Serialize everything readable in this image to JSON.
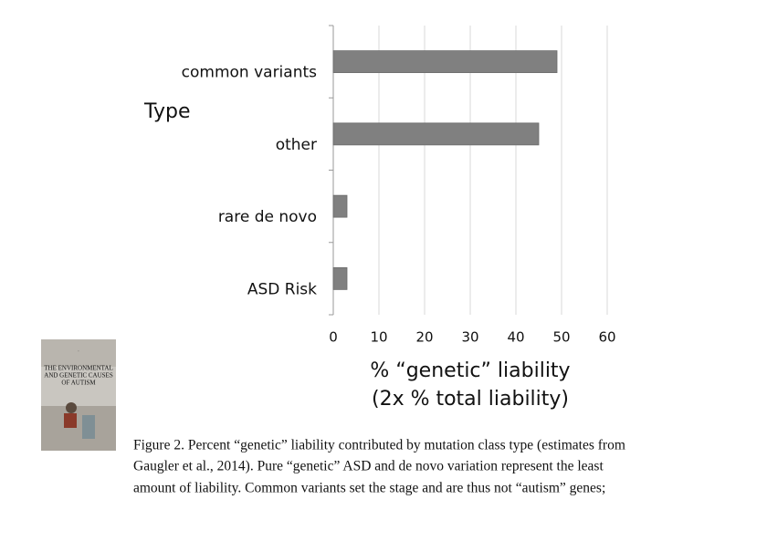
{
  "chart_data": {
    "type": "bar",
    "orientation": "horizontal",
    "ylabel": "Type",
    "xlabel": [
      "% “genetic” liability",
      "(2x % total liability)"
    ],
    "categories": [
      "common variants",
      "other",
      "rare de novo",
      "ASD Risk"
    ],
    "values": [
      49,
      45,
      3,
      3
    ],
    "color": "#808080",
    "xlim": [
      0,
      60
    ],
    "xticks": [
      0,
      10,
      20,
      30,
      40,
      50,
      60
    ],
    "grid": true
  },
  "book": {
    "title": [
      "THE ENVIRONMENTAL",
      "AND GENETIC CAUSES",
      "OF AUTISM"
    ]
  },
  "caption": [
    "Figure 2. Percent “genetic” liability contributed by mutation class type (estimates from",
    "Gaugler et al., 2014). Pure “genetic” ASD and de novo variation represent the least",
    "amount of liability. Common variants set the stage and are thus not “autism” genes;"
  ]
}
